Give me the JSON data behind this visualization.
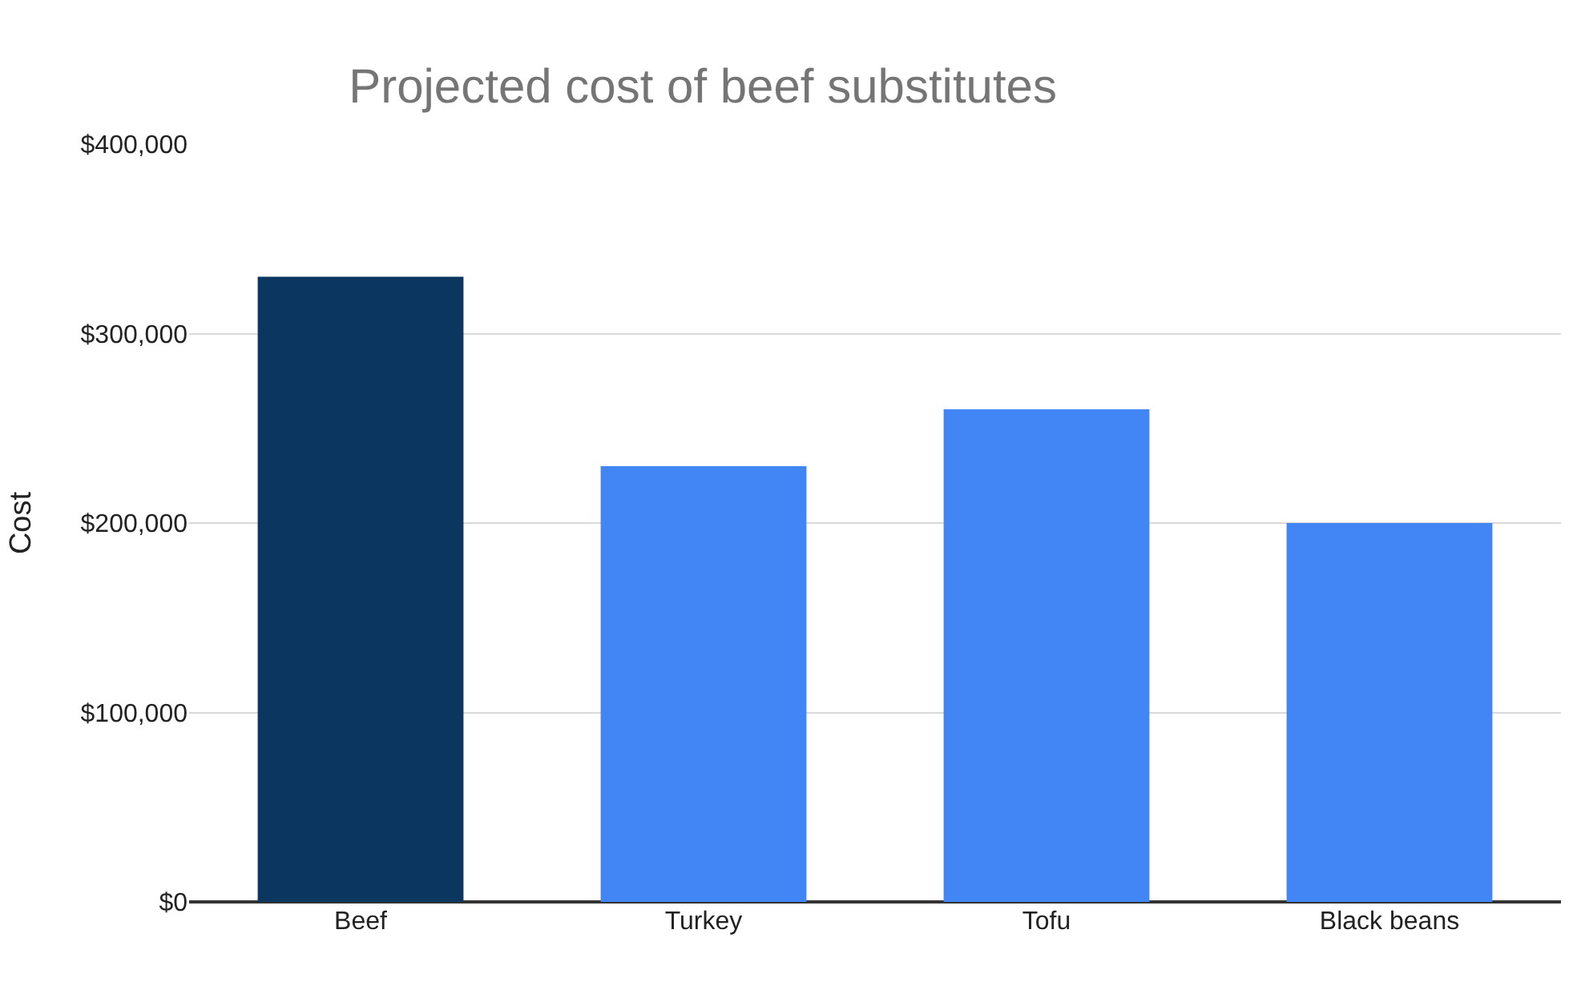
{
  "chart_data": {
    "type": "bar",
    "title": "Projected cost of beef substitutes",
    "ylabel": "Cost",
    "categories": [
      "Beef",
      "Turkey",
      "Tofu",
      "Black beans"
    ],
    "values": [
      330000,
      230000,
      260000,
      200000
    ],
    "colors": [
      "#0b3660",
      "#4285f4",
      "#4285f4",
      "#4285f4"
    ],
    "ylim": [
      0,
      400000
    ],
    "yticks": [
      {
        "value": 0,
        "label": "$0"
      },
      {
        "value": 100000,
        "label": "$100,000"
      },
      {
        "value": 200000,
        "label": "$200,000"
      },
      {
        "value": 300000,
        "label": "$300,000"
      },
      {
        "value": 400000,
        "label": "$400,000"
      }
    ],
    "grid": "y"
  }
}
